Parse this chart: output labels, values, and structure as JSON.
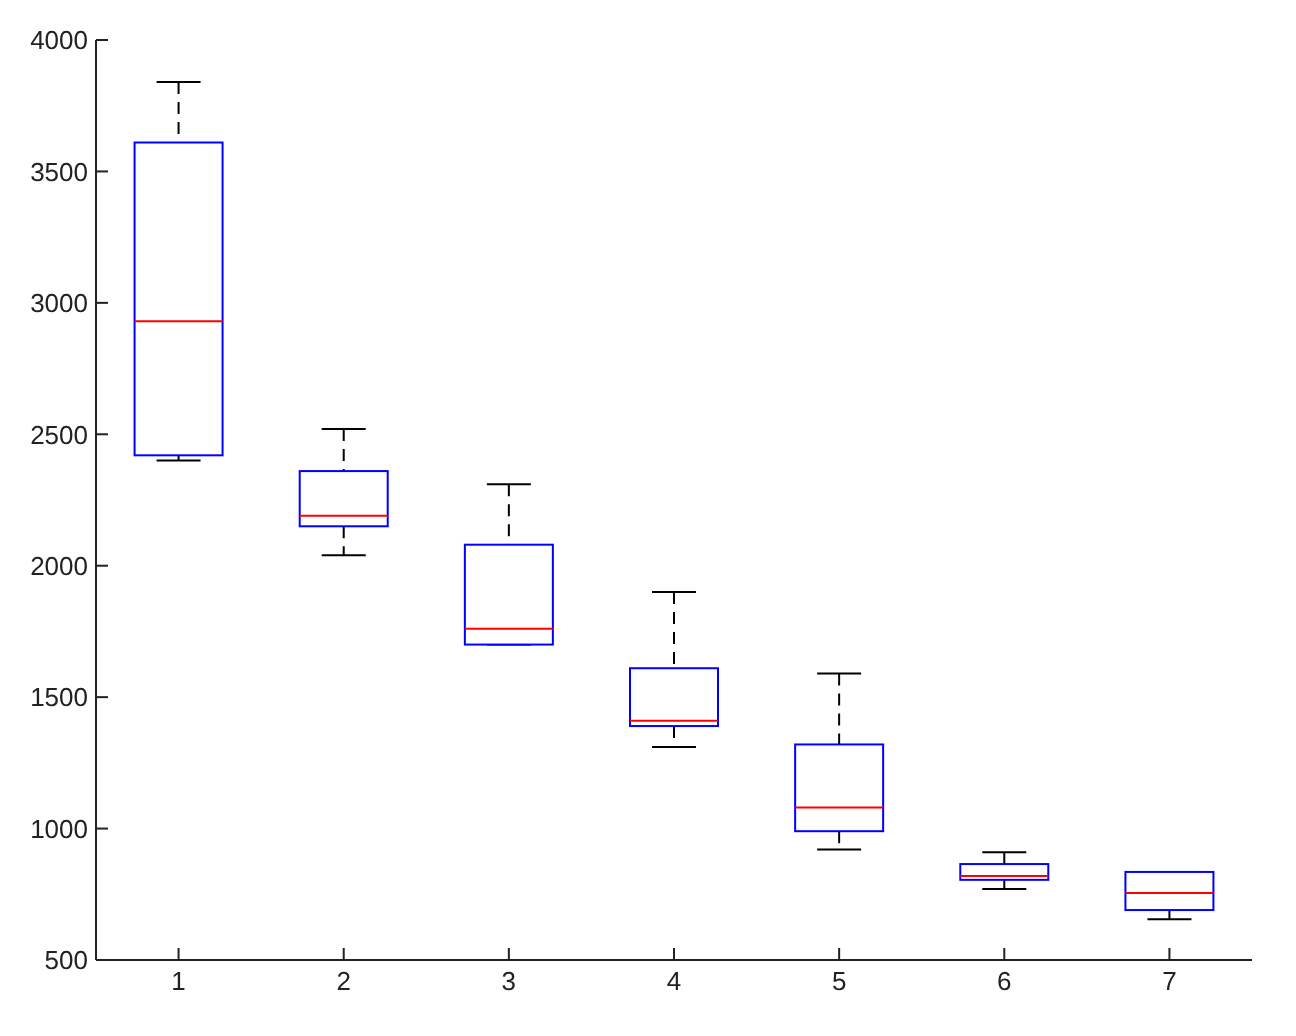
{
  "chart_data": {
    "type": "box",
    "categories": [
      "1",
      "2",
      "3",
      "4",
      "5",
      "6",
      "7"
    ],
    "boxes": [
      {
        "low": 2400,
        "q1": 2420,
        "median": 2930,
        "q3": 3610,
        "high": 3840
      },
      {
        "low": 2040,
        "q1": 2150,
        "median": 2190,
        "q3": 2360,
        "high": 2520
      },
      {
        "low": 1700,
        "q1": 1700,
        "median": 1760,
        "q3": 2080,
        "high": 2310
      },
      {
        "low": 1310,
        "q1": 1390,
        "median": 1410,
        "q3": 1610,
        "high": 1900
      },
      {
        "low": 920,
        "q1": 990,
        "median": 1080,
        "q3": 1320,
        "high": 1590
      },
      {
        "low": 770,
        "q1": 805,
        "median": 820,
        "q3": 865,
        "high": 910
      },
      {
        "low": 655,
        "q1": 690,
        "median": 755,
        "q3": 835,
        "high": 835
      }
    ],
    "color": "#0000ff",
    "ylim": [
      500,
      4000
    ],
    "yticks": [
      500,
      1000,
      1500,
      2000,
      2500,
      3000,
      3500,
      4000
    ],
    "grid": false,
    "legend": false
  }
}
